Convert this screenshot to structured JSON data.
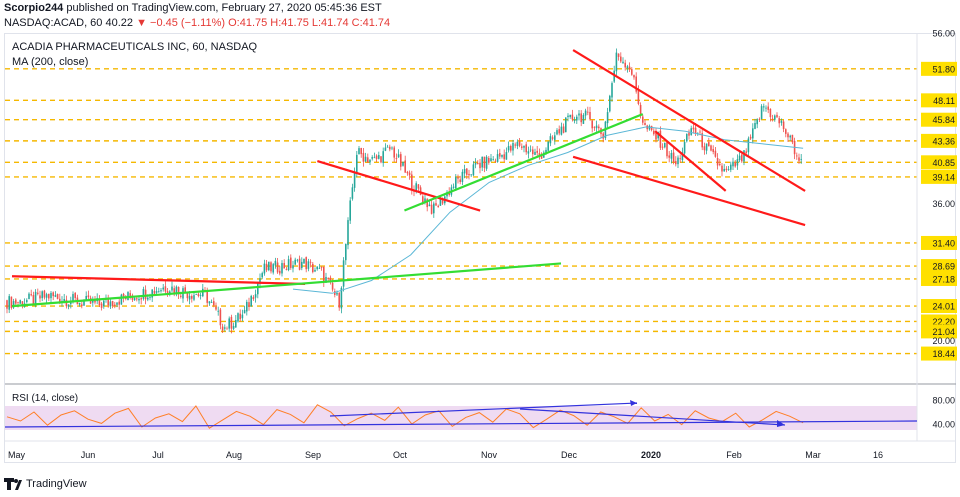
{
  "header": {
    "author": "Scorpio244",
    "published": "published on TradingView.com, February 27, 2020 05:45:36 EST",
    "symbol": "NASDAQ:ACAD, 60",
    "last": "40.22",
    "change": "−0.45 (−1.11%)",
    "ohlc": "O:41.75 H:41.75 L:41.74 C:41.74"
  },
  "chart_title": "ACADIA PHARMACEUTICALS INC, 60, NASDAQ",
  "ma_label": "MA (200, close)",
  "rsi_label": "RSI (14, close)",
  "footer": {
    "brand": "TradingView"
  },
  "colors": {
    "candle_up": "#26a69a",
    "candle_down": "#ef5350",
    "ma": "#5bb7d6",
    "rsi": "#ff7f27",
    "rsi_band": "#e1bee7",
    "trend_red": "#ff1a1a",
    "trend_green": "#33dd33",
    "trend_blue": "#3333dd",
    "level_line": "#f5b800"
  },
  "chart_data": {
    "type": "candlestick",
    "symbol": "ACAD",
    "interval": "60",
    "price_axis_ticks": [
      56.0,
      51.8,
      48.11,
      45.84,
      43.36,
      40.85,
      39.14,
      36.0,
      31.4,
      28.69,
      27.18,
      24.01,
      22.2,
      21.04,
      20.0,
      18.44
    ],
    "horizontal_levels": [
      51.8,
      48.11,
      45.84,
      43.36,
      40.85,
      39.14,
      31.4,
      28.69,
      27.18,
      24.01,
      22.2,
      21.04,
      18.44
    ],
    "last_price": 40.22,
    "x_tick_labels": [
      "May",
      "Jun",
      "Jul",
      "Aug",
      "Sep",
      "Oct",
      "Nov",
      "Dec",
      "2020",
      "Feb",
      "Mar",
      "16"
    ],
    "price_path": [
      {
        "month": "May",
        "price": 24.5
      },
      {
        "month": "May",
        "price": 25.2
      },
      {
        "month": "May",
        "price": 24.6
      },
      {
        "month": "Jun",
        "price": 24.2
      },
      {
        "month": "Jun",
        "price": 24.9
      },
      {
        "month": "Jun",
        "price": 25.6
      },
      {
        "month": "Jul",
        "price": 26.3
      },
      {
        "month": "Jul",
        "price": 25.6
      },
      {
        "month": "Jul",
        "price": 25.3
      },
      {
        "month": "Jul",
        "price": 21.5
      },
      {
        "month": "Aug",
        "price": 23.0
      },
      {
        "month": "Aug",
        "price": 28.3
      },
      {
        "month": "Aug",
        "price": 28.7
      },
      {
        "month": "Aug",
        "price": 29.1
      },
      {
        "month": "Sep",
        "price": 27.9
      },
      {
        "month": "Sep",
        "price": 24.5
      },
      {
        "month": "Sep",
        "price": 42.0
      },
      {
        "month": "Sep",
        "price": 41.0
      },
      {
        "month": "Sep",
        "price": 42.5
      },
      {
        "month": "Oct",
        "price": 38.5
      },
      {
        "month": "Oct",
        "price": 35.2
      },
      {
        "month": "Oct",
        "price": 38.5
      },
      {
        "month": "Oct",
        "price": 40.5
      },
      {
        "month": "Nov",
        "price": 41.5
      },
      {
        "month": "Nov",
        "price": 43.0
      },
      {
        "month": "Nov",
        "price": 41.5
      },
      {
        "month": "Nov",
        "price": 44.5
      },
      {
        "month": "Dec",
        "price": 46.5
      },
      {
        "month": "Dec",
        "price": 46.0
      },
      {
        "month": "Dec",
        "price": 44.0
      },
      {
        "month": "Dec",
        "price": 53.5
      },
      {
        "month": "Dec",
        "price": 52.0
      },
      {
        "month": "Dec",
        "price": 45.0
      },
      {
        "month": "2020",
        "price": 43.5
      },
      {
        "month": "2020",
        "price": 40.5
      },
      {
        "month": "2020",
        "price": 45.0
      },
      {
        "month": "2020",
        "price": 42.0
      },
      {
        "month": "2020",
        "price": 39.5
      },
      {
        "month": "Feb",
        "price": 41.5
      },
      {
        "month": "Feb",
        "price": 47.5
      },
      {
        "month": "Feb",
        "price": 45.0
      },
      {
        "month": "Feb",
        "price": 40.22
      }
    ],
    "moving_average": {
      "name": "MA (200, close)",
      "values": [
        26.0,
        25.5,
        27.0,
        30.0,
        35.0,
        38.5,
        40.5,
        42.0,
        44.0,
        45.0,
        44.5,
        43.5,
        43.0,
        42.5
      ]
    },
    "rsi": {
      "name": "RSI (14, close)",
      "axis_ticks": [
        80.0,
        40.0
      ],
      "band": [
        30,
        70
      ],
      "values": [
        52,
        45,
        60,
        38,
        55,
        62,
        48,
        41,
        58,
        66,
        35,
        50,
        57,
        44,
        70,
        33,
        47,
        61,
        53,
        39,
        64,
        56,
        42,
        72,
        60,
        37,
        49,
        58,
        46,
        68,
        40,
        55,
        62,
        36,
        51,
        59,
        43,
        65,
        57,
        34,
        48,
        63,
        54,
        38,
        60,
        52,
        41,
        67,
        45,
        56,
        39,
        62,
        50,
        44,
        58,
        35,
        47,
        61,
        53,
        42
      ]
    },
    "trendlines": [
      {
        "color": "red",
        "from": {
          "month": "May",
          "price": 27.5
        },
        "to": {
          "month": "Aug",
          "price": 26.6
        }
      },
      {
        "color": "green",
        "from": {
          "month": "May",
          "price": 24.0
        },
        "to": {
          "month": "Nov",
          "price": 29.0
        }
      },
      {
        "color": "red",
        "from": {
          "month": "Sep",
          "price": 41.0
        },
        "to": {
          "month": "Oct",
          "price": 35.2
        }
      },
      {
        "color": "green",
        "from": {
          "month": "Oct",
          "price": 35.2
        },
        "to": {
          "month": "Dec",
          "price": 46.5
        }
      },
      {
        "color": "red",
        "from": {
          "month": "Dec",
          "price": 54.0
        },
        "to": {
          "month": "Feb",
          "price": 37.5
        }
      },
      {
        "color": "red",
        "from": {
          "month": "Dec",
          "price": 41.5
        },
        "to": {
          "month": "Feb",
          "price": 33.5
        }
      },
      {
        "color": "red",
        "from": {
          "month": "2020",
          "price": 44.5
        },
        "to": {
          "month": "2020",
          "price": 37.5
        }
      }
    ]
  }
}
